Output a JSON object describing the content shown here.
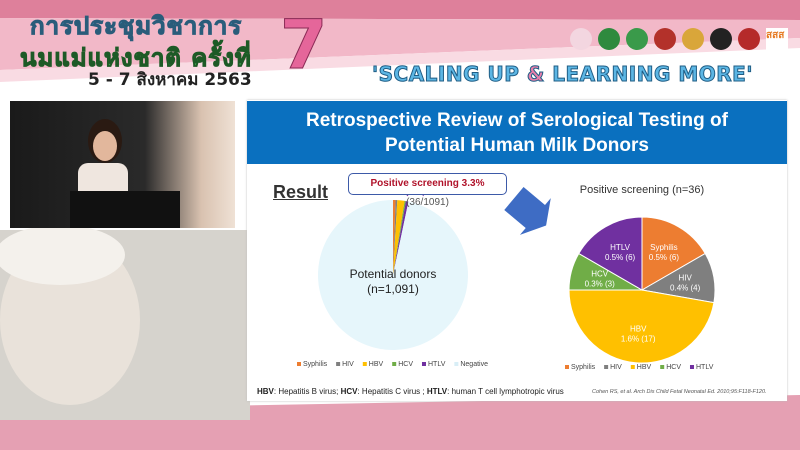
{
  "banner": {
    "title_line1": "การประชุมวิชาการ",
    "title_line2": "นมแม่แห่งชาติ ครั้งที่",
    "dates": "5 - 7 สิงหาคม 2563",
    "edition": "7",
    "slogan_part1": "'SCALING UP ",
    "slogan_amp": "&",
    "slogan_part2": " LEARNING MORE'",
    "logos": [
      "logo-1",
      "logo-2",
      "logo-3",
      "logo-4",
      "logo-5",
      "logo-6",
      "logo-7",
      "logo-sss"
    ]
  },
  "slide": {
    "title_line1": "Retrospective Review of Serological Testing of",
    "title_line2": "Potential Human Milk Donors",
    "result_heading": "Result",
    "callout_bold": "Positive screening 3.3%",
    "callout_rest": " (36/1091)",
    "footnote_parts": [
      {
        "bold": "HBV",
        "text": ": Hepatitis B virus; "
      },
      {
        "bold": "HCV",
        "text": ": Hepatitis C virus ; "
      },
      {
        "bold": "HTLV",
        "text": ": human T cell lymphotropic virus"
      }
    ],
    "reference": "Cohen RS, et al. Arch Dis Child Fetal Neonatal Ed. 2010;95:F118-F120."
  },
  "colors": {
    "header": "#0a70bf",
    "Syphilis": "#ed7d31",
    "HIV": "#7f7f7f",
    "HBV": "#ffc000",
    "HCV": "#70ad47",
    "HTLV": "#7030a0",
    "Negative": "#e6f6fb"
  },
  "chart_data": [
    {
      "type": "pie",
      "title": "",
      "center_label_line1": "Potential donors",
      "center_label_line2": "(n=1,091)",
      "categories": [
        "Syphilis",
        "HIV",
        "HBV",
        "HCV",
        "HTLV",
        "Negative"
      ],
      "values": [
        6,
        4,
        17,
        3,
        6,
        1055
      ],
      "legend": "bottom"
    },
    {
      "type": "pie",
      "title": "Positive screening (n=36)",
      "categories": [
        "Syphilis",
        "HIV",
        "HBV",
        "HCV",
        "HTLV"
      ],
      "values": [
        6,
        4,
        17,
        3,
        6
      ],
      "data_labels": [
        "0.5% (6)",
        "0.4% (4)",
        "1.6% (17)",
        "0.3% (3)",
        "0.5% (6)"
      ],
      "legend": "bottom"
    }
  ]
}
